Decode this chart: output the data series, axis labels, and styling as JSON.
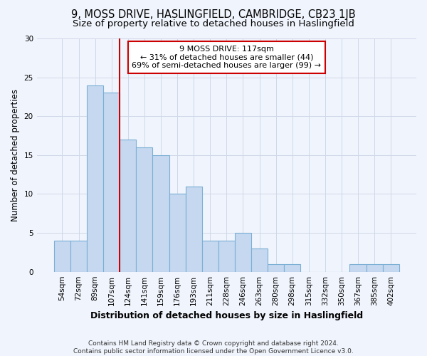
{
  "title": "9, MOSS DRIVE, HASLINGFIELD, CAMBRIDGE, CB23 1JB",
  "subtitle": "Size of property relative to detached houses in Haslingfield",
  "xlabel": "Distribution of detached houses by size in Haslingfield",
  "ylabel": "Number of detached properties",
  "categories": [
    "54sqm",
    "72sqm",
    "89sqm",
    "107sqm",
    "124sqm",
    "141sqm",
    "159sqm",
    "176sqm",
    "193sqm",
    "211sqm",
    "228sqm",
    "246sqm",
    "263sqm",
    "280sqm",
    "298sqm",
    "315sqm",
    "332sqm",
    "350sqm",
    "367sqm",
    "385sqm",
    "402sqm"
  ],
  "values": [
    4,
    4,
    24,
    23,
    17,
    16,
    15,
    10,
    11,
    4,
    4,
    5,
    3,
    1,
    1,
    0,
    0,
    0,
    1,
    1,
    1
  ],
  "bar_color": "#C5D8F0",
  "bar_edge_color": "#7BAFD4",
  "bar_edge_width": 0.8,
  "grid_color": "#d0d8e8",
  "background_color": "#F0F4FC",
  "plot_bg_color": "#F0F4FC",
  "vline_x": 3.5,
  "vline_color": "#CC0000",
  "annotation_text": "9 MOSS DRIVE: 117sqm\n← 31% of detached houses are smaller (44)\n69% of semi-detached houses are larger (99) →",
  "annotation_box_color": "#ffffff",
  "annotation_border_color": "#CC0000",
  "ylim": [
    0,
    30
  ],
  "yticks": [
    0,
    5,
    10,
    15,
    20,
    25,
    30
  ],
  "footer_line1": "Contains HM Land Registry data © Crown copyright and database right 2024.",
  "footer_line2": "Contains public sector information licensed under the Open Government Licence v3.0.",
  "title_fontsize": 10.5,
  "subtitle_fontsize": 9.5,
  "xlabel_fontsize": 9,
  "ylabel_fontsize": 8.5,
  "tick_fontsize": 7.5,
  "annotation_fontsize": 8,
  "footer_fontsize": 6.5
}
